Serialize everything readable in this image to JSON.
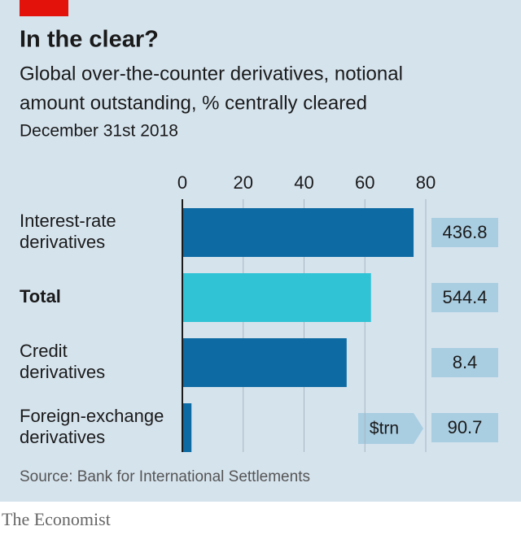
{
  "chart_data": {
    "type": "bar",
    "title": "In the clear?",
    "subtitle": [
      "Global over-the-counter derivatives, notional",
      "amount outstanding, % centrally cleared"
    ],
    "date": "December 31st 2018",
    "categories": [
      [
        "Interest-rate",
        "derivatives"
      ],
      [
        "Total"
      ],
      [
        "Credit",
        "derivatives"
      ],
      [
        "Foreign-exchange",
        "derivatives"
      ]
    ],
    "bold": [
      false,
      true,
      false,
      false
    ],
    "values": [
      76,
      62,
      54,
      3
    ],
    "colors": [
      "#0e6aa3",
      "#2fc3d5",
      "#0e6aa3",
      "#0e6aa3"
    ],
    "amounts": [
      436.8,
      544.4,
      8.4,
      90.7
    ],
    "amount_unit": "$trn",
    "xlim": [
      0,
      80
    ],
    "xticks": [
      0,
      20,
      40,
      60,
      80
    ],
    "grid": true,
    "source": "Source: Bank for International Settlements",
    "brand": "The Economist"
  }
}
